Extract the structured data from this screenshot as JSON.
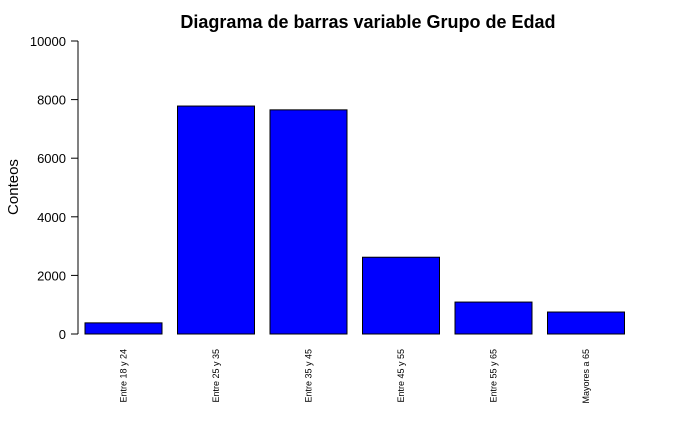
{
  "chart_data": {
    "type": "bar",
    "title": "Diagrama de barras variable Grupo de Edad",
    "xlabel": "",
    "ylabel": "Conteos",
    "categories": [
      "Entre 18 y 24",
      "Entre 25 y 35",
      "Entre 35 y 45",
      "Entre 45 y 55",
      "Entre 55 y 65",
      "Mayores a 65"
    ],
    "values": [
      380,
      7780,
      7650,
      2620,
      1090,
      750
    ],
    "ylim": [
      0,
      10000
    ],
    "yticks": [
      0,
      2000,
      4000,
      6000,
      8000,
      10000
    ],
    "bar_color": "#0000ff",
    "grid": false,
    "legend": "none"
  }
}
